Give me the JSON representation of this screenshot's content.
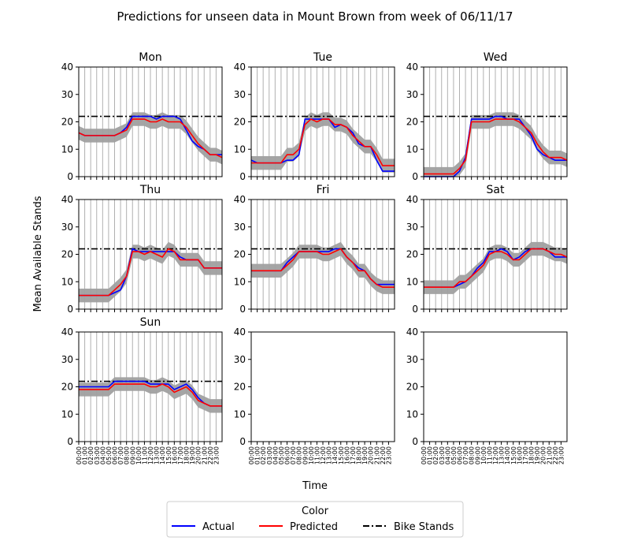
{
  "figure": {
    "title": "Predictions for unseen data in Mount Brown from week of 06/11/17",
    "ylabel": "Mean Available Stands",
    "xlabel": "Time",
    "legend_title": "Color",
    "legend": [
      "Actual",
      "Predicted",
      "Bike Stands"
    ]
  },
  "colors": {
    "actual": "#0000ff",
    "predicted": "#ff0000",
    "bike_stands": "#000000",
    "band": "#a0a0a0",
    "grid": "#b0b0b0"
  },
  "x_ticks": [
    "00:00",
    "01:00",
    "02:00",
    "03:00",
    "04:00",
    "05:00",
    "06:00",
    "07:00",
    "08:00",
    "09:00",
    "10:00",
    "11:00",
    "12:00",
    "13:00",
    "14:00",
    "15:00",
    "16:00",
    "17:00",
    "18:00",
    "19:00",
    "20:00",
    "21:00",
    "22:00",
    "23:00"
  ],
  "y_ticks": [
    "0",
    "10",
    "20",
    "30",
    "40"
  ],
  "chart_data": [
    {
      "type": "line",
      "title": "Mon",
      "ylim": [
        0,
        40
      ],
      "bike_stands": 22,
      "hours": [
        0,
        1,
        2,
        3,
        4,
        5,
        6,
        7,
        8,
        9,
        10,
        11,
        12,
        13,
        14,
        15,
        16,
        17,
        18,
        19,
        20,
        21,
        22,
        23,
        24
      ],
      "series": [
        {
          "name": "Actual",
          "values": [
            16,
            15,
            15,
            15,
            15,
            15,
            15,
            16,
            18,
            22,
            22,
            22,
            22,
            21,
            22,
            22,
            22,
            21,
            17,
            13,
            11,
            10,
            8,
            8,
            8
          ]
        },
        {
          "name": "Predicted",
          "values": [
            16,
            15,
            15,
            15,
            15,
            15,
            15,
            16,
            17,
            21,
            21,
            21,
            20,
            20,
            21,
            20,
            20,
            20,
            18,
            15,
            12,
            10,
            8,
            8,
            7
          ]
        }
      ]
    },
    {
      "type": "line",
      "title": "Tue",
      "ylim": [
        0,
        40
      ],
      "bike_stands": 22,
      "hours": [
        0,
        1,
        2,
        3,
        4,
        5,
        6,
        7,
        8,
        9,
        10,
        11,
        12,
        13,
        14,
        15,
        16,
        17,
        18,
        19,
        20,
        21,
        22,
        23,
        24
      ],
      "series": [
        {
          "name": "Actual",
          "values": [
            6,
            5,
            5,
            5,
            5,
            5,
            6,
            6,
            8,
            21,
            21,
            21,
            21,
            21,
            18,
            19,
            18,
            16,
            12,
            11,
            11,
            6,
            2,
            2,
            2
          ]
        },
        {
          "name": "Predicted",
          "values": [
            5,
            5,
            5,
            5,
            5,
            5,
            8,
            8,
            10,
            19,
            21,
            20,
            21,
            21,
            19,
            19,
            18,
            15,
            13,
            11,
            11,
            8,
            4,
            4,
            4
          ]
        }
      ]
    },
    {
      "type": "line",
      "title": "Wed",
      "ylim": [
        0,
        40
      ],
      "bike_stands": 22,
      "hours": [
        0,
        1,
        2,
        3,
        4,
        5,
        6,
        7,
        8,
        9,
        10,
        11,
        12,
        13,
        14,
        15,
        16,
        17,
        18,
        19,
        20,
        21,
        22,
        23,
        24
      ],
      "series": [
        {
          "name": "Actual",
          "values": [
            0,
            0,
            0,
            0,
            0,
            0,
            2,
            7,
            21,
            21,
            21,
            21,
            22,
            22,
            21,
            21,
            21,
            18,
            15,
            10,
            8,
            7,
            6,
            6,
            6
          ]
        },
        {
          "name": "Predicted",
          "values": [
            1,
            1,
            1,
            1,
            1,
            1,
            3,
            6,
            20,
            20,
            20,
            20,
            21,
            21,
            21,
            21,
            20,
            18,
            16,
            12,
            9,
            7,
            7,
            7,
            6
          ]
        }
      ]
    },
    {
      "type": "line",
      "title": "Thu",
      "ylim": [
        0,
        40
      ],
      "bike_stands": 22,
      "hours": [
        0,
        1,
        2,
        3,
        4,
        5,
        6,
        7,
        8,
        9,
        10,
        11,
        12,
        13,
        14,
        15,
        16,
        17,
        18,
        19,
        20,
        21,
        22,
        23,
        24
      ],
      "series": [
        {
          "name": "Actual",
          "values": [
            5,
            5,
            5,
            5,
            5,
            5,
            6,
            7,
            12,
            22,
            21,
            21,
            21,
            21,
            21,
            21,
            21,
            19,
            18,
            18,
            18,
            15,
            15,
            15,
            15
          ]
        },
        {
          "name": "Predicted",
          "values": [
            5,
            5,
            5,
            5,
            5,
            5,
            7,
            9,
            12,
            21,
            21,
            20,
            21,
            20,
            19,
            22,
            21,
            18,
            18,
            18,
            18,
            15,
            15,
            15,
            15
          ]
        }
      ]
    },
    {
      "type": "line",
      "title": "Fri",
      "ylim": [
        0,
        40
      ],
      "bike_stands": 22,
      "hours": [
        0,
        1,
        2,
        3,
        4,
        5,
        6,
        7,
        8,
        9,
        10,
        11,
        12,
        13,
        14,
        15,
        16,
        17,
        18,
        19,
        20,
        21,
        22,
        23,
        24
      ],
      "series": [
        {
          "name": "Actual",
          "values": [
            14,
            14,
            14,
            14,
            14,
            14,
            17,
            19,
            21,
            21,
            21,
            21,
            21,
            21,
            22,
            22,
            19,
            17,
            15,
            14,
            11,
            9,
            9,
            9,
            9
          ]
        },
        {
          "name": "Predicted",
          "values": [
            14,
            14,
            14,
            14,
            14,
            14,
            16,
            18,
            21,
            21,
            21,
            21,
            20,
            20,
            21,
            22,
            19,
            17,
            14,
            14,
            11,
            9,
            8,
            8,
            8
          ]
        }
      ]
    },
    {
      "type": "line",
      "title": "Sat",
      "ylim": [
        0,
        40
      ],
      "bike_stands": 22,
      "hours": [
        0,
        1,
        2,
        3,
        4,
        5,
        6,
        7,
        8,
        9,
        10,
        11,
        12,
        13,
        14,
        15,
        16,
        17,
        18,
        19,
        20,
        21,
        22,
        23,
        24
      ],
      "series": [
        {
          "name": "Actual",
          "values": [
            8,
            8,
            8,
            8,
            8,
            8,
            9,
            10,
            12,
            15,
            17,
            21,
            21,
            22,
            21,
            18,
            19,
            21,
            22,
            22,
            22,
            21,
            19,
            19,
            19
          ]
        },
        {
          "name": "Predicted",
          "values": [
            8,
            8,
            8,
            8,
            8,
            8,
            10,
            10,
            12,
            14,
            16,
            20,
            21,
            21,
            20,
            18,
            18,
            20,
            22,
            22,
            22,
            21,
            20,
            20,
            19
          ]
        }
      ]
    },
    {
      "type": "line",
      "title": "Sun",
      "ylim": [
        0,
        40
      ],
      "bike_stands": 22,
      "hours": [
        0,
        1,
        2,
        3,
        4,
        5,
        6,
        7,
        8,
        9,
        10,
        11,
        12,
        13,
        14,
        15,
        16,
        17,
        18,
        19,
        20,
        21,
        22,
        23,
        24
      ],
      "series": [
        {
          "name": "Actual",
          "values": [
            20,
            20,
            20,
            20,
            20,
            20,
            22,
            22,
            22,
            22,
            22,
            22,
            21,
            21,
            21,
            21,
            19,
            20,
            21,
            19,
            16,
            14,
            13,
            13,
            13
          ]
        },
        {
          "name": "Predicted",
          "values": [
            19,
            19,
            19,
            19,
            19,
            19,
            21,
            21,
            21,
            21,
            21,
            21,
            20,
            20,
            21,
            20,
            18,
            19,
            20,
            18,
            15,
            14,
            13,
            13,
            13
          ]
        }
      ]
    }
  ]
}
